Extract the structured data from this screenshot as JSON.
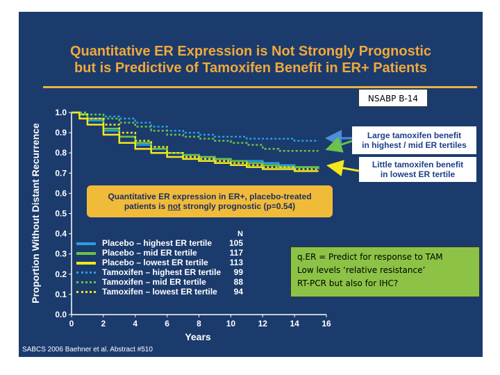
{
  "slide": {
    "title_line1": "Quantitative ER Expression is Not Strongly Prognostic",
    "title_line2": "but is Predictive of Tamoxifen Benefit in ER+ Patients",
    "badge": "NSABP B-14",
    "callout_large_line1": "Large tamoxifen benefit",
    "callout_large_line2": "in highest / mid ER tertiles",
    "callout_little_line1": "Little tamoxifen benefit",
    "callout_little_line2": "in lowest ER tertile",
    "prognostic_line1": "Quantitative ER expression in ER+, placebo-treated",
    "prognostic_line2_a": "patients is ",
    "prognostic_line2_b": "not",
    "prognostic_line2_c": " strongly prognostic (p=0.54)",
    "note_lines": [
      "q.ER = Predict for response to TAM",
      "Low levels ‘relative resistance’",
      "RT-PCR but also for IHC?"
    ],
    "footer": "SABCS 2006 Baehner et al. Abstract #510",
    "colors": {
      "background": "#1b3b6d",
      "title": "#f0a93b",
      "blue": "#2a9fe0",
      "green": "#6cc24a",
      "yellow": "#f5e71c",
      "note_box": "#8cc346",
      "prognostic_box": "#f1bb3a"
    }
  },
  "chart_data": {
    "type": "line",
    "xlabel": "Years",
    "ylabel": "Proportion Without Distant Recurrence",
    "xlim": [
      0,
      16
    ],
    "ylim": [
      0,
      1
    ],
    "xticks": [
      0,
      2,
      4,
      6,
      8,
      10,
      12,
      14,
      16
    ],
    "yticks": [
      "0.0",
      "0.1",
      "0.2",
      "0.3",
      "0.4",
      "0.5",
      "0.6",
      "0.7",
      "0.8",
      "0.9",
      "1.0"
    ],
    "legend_header": "N",
    "series": [
      {
        "name": "Placebo – highest ER tertile",
        "n": "105",
        "color": "#2a9fe0",
        "dash": "solid",
        "x": [
          0,
          0.5,
          1,
          2,
          3,
          4,
          5,
          6,
          7,
          8,
          9,
          10,
          11,
          12,
          13,
          14,
          15.5
        ],
        "y": [
          1.0,
          0.99,
          0.96,
          0.91,
          0.88,
          0.84,
          0.82,
          0.8,
          0.79,
          0.78,
          0.77,
          0.76,
          0.76,
          0.75,
          0.74,
          0.73,
          0.73
        ]
      },
      {
        "name": "Placebo – mid ER tertile",
        "n": "117",
        "color": "#6cc24a",
        "dash": "solid",
        "x": [
          0,
          0.5,
          1,
          2,
          3,
          4,
          5,
          6,
          7,
          8,
          9,
          10,
          11,
          12,
          13,
          14,
          15.5
        ],
        "y": [
          1.0,
          0.99,
          0.97,
          0.92,
          0.88,
          0.85,
          0.82,
          0.8,
          0.79,
          0.78,
          0.77,
          0.76,
          0.75,
          0.74,
          0.73,
          0.73,
          0.72
        ]
      },
      {
        "name": "Placebo – lowest ER tertile",
        "n": "113",
        "color": "#f5e71c",
        "dash": "solid",
        "x": [
          0,
          0.5,
          1,
          2,
          3,
          4,
          5,
          6,
          7,
          8,
          9,
          10,
          11,
          12,
          13,
          14,
          15.5
        ],
        "y": [
          1.0,
          0.97,
          0.94,
          0.89,
          0.85,
          0.82,
          0.8,
          0.78,
          0.77,
          0.76,
          0.75,
          0.74,
          0.73,
          0.72,
          0.72,
          0.71,
          0.71
        ]
      },
      {
        "name": "Tamoxifen – highest ER tertile",
        "n": "99",
        "color": "#2a9fe0",
        "dash": "dotted",
        "x": [
          0,
          0.5,
          1,
          2,
          3,
          4,
          5,
          6,
          7,
          8,
          9,
          10,
          11,
          12,
          13,
          14,
          15.5
        ],
        "y": [
          1.0,
          1.0,
          0.99,
          0.98,
          0.97,
          0.95,
          0.93,
          0.91,
          0.9,
          0.89,
          0.88,
          0.88,
          0.87,
          0.87,
          0.87,
          0.86,
          0.86
        ]
      },
      {
        "name": "Tamoxifen – mid ER tertile",
        "n": "88",
        "color": "#6cc24a",
        "dash": "dotted",
        "x": [
          0,
          0.5,
          1,
          2,
          3,
          4,
          5,
          6,
          7,
          8,
          9,
          10,
          11,
          12,
          13,
          14,
          15.5
        ],
        "y": [
          1.0,
          1.0,
          0.99,
          0.97,
          0.95,
          0.93,
          0.91,
          0.89,
          0.88,
          0.87,
          0.86,
          0.85,
          0.84,
          0.82,
          0.81,
          0.81,
          0.81
        ]
      },
      {
        "name": "Tamoxifen – lowest ER tertile",
        "n": "94",
        "color": "#f5e71c",
        "dash": "dotted",
        "x": [
          0,
          0.5,
          1,
          2,
          3,
          4,
          5,
          6,
          7,
          8,
          9,
          10,
          11,
          12,
          13,
          14,
          15.5
        ],
        "y": [
          1.0,
          0.99,
          0.97,
          0.94,
          0.9,
          0.86,
          0.83,
          0.8,
          0.78,
          0.77,
          0.76,
          0.75,
          0.74,
          0.73,
          0.73,
          0.72,
          0.72
        ]
      }
    ]
  }
}
